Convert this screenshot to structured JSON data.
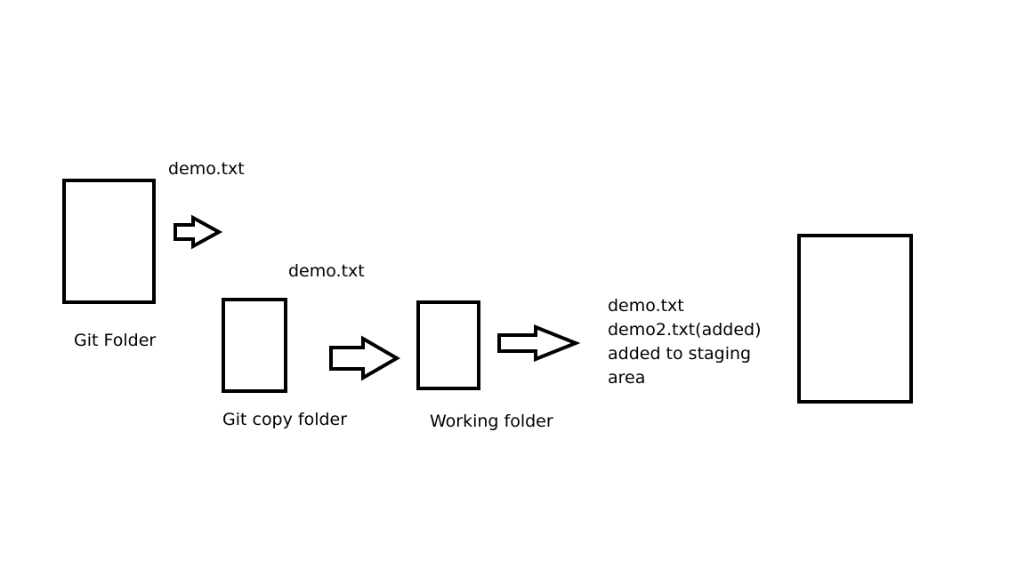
{
  "diagram": {
    "git_folder": {
      "label": "Git Folder",
      "file_note": "demo.txt"
    },
    "git_copy_folder": {
      "label": "Git copy folder",
      "file_note": "demo.txt"
    },
    "working_folder": {
      "label": "Working folder"
    },
    "staging_note": {
      "lines": [
        "demo.txt",
        "demo2.txt(added)",
        "added to staging",
        "area"
      ]
    },
    "colors": {
      "stroke": "#000000",
      "background": "#ffffff"
    }
  }
}
